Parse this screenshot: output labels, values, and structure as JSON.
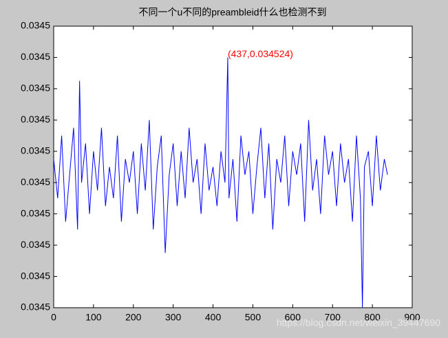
{
  "chart_data": {
    "type": "line",
    "title": "不同一个u不同的preambleid什么也检测不到",
    "x": [
      0,
      10,
      20,
      30,
      40,
      50,
      60,
      65,
      70,
      80,
      90,
      100,
      110,
      120,
      130,
      140,
      150,
      160,
      170,
      180,
      190,
      200,
      210,
      220,
      230,
      240,
      250,
      260,
      270,
      280,
      290,
      300,
      310,
      320,
      330,
      340,
      350,
      360,
      370,
      380,
      390,
      400,
      410,
      420,
      430,
      437,
      440,
      450,
      460,
      470,
      480,
      490,
      500,
      510,
      520,
      530,
      540,
      550,
      560,
      570,
      580,
      590,
      600,
      610,
      620,
      630,
      640,
      650,
      660,
      670,
      680,
      690,
      700,
      710,
      720,
      730,
      740,
      750,
      760,
      770,
      775,
      780,
      790,
      800,
      810,
      820,
      830,
      838
    ],
    "series": [
      {
        "color": "#0000ff",
        "values": [
          0.034511,
          0.034506,
          0.034514,
          0.034503,
          0.034509,
          0.034515,
          0.034502,
          0.034521,
          0.034508,
          0.034513,
          0.034504,
          0.034512,
          0.034507,
          0.034515,
          0.034505,
          0.03451,
          0.034506,
          0.034514,
          0.034503,
          0.034511,
          0.034508,
          0.034512,
          0.034504,
          0.034513,
          0.034507,
          0.034516,
          0.034502,
          0.03451,
          0.034514,
          0.034499,
          0.034509,
          0.034513,
          0.034505,
          0.034512,
          0.034506,
          0.034515,
          0.034508,
          0.034511,
          0.034504,
          0.034513,
          0.034507,
          0.03451,
          0.034505,
          0.034512,
          0.034508,
          0.034524,
          0.034506,
          0.034511,
          0.034503,
          0.034514,
          0.034509,
          0.034512,
          0.034504,
          0.03451,
          0.034515,
          0.034506,
          0.034513,
          0.034502,
          0.034511,
          0.034508,
          0.034514,
          0.034505,
          0.034512,
          0.034509,
          0.034513,
          0.034503,
          0.034516,
          0.034507,
          0.034511,
          0.034504,
          0.034514,
          0.034509,
          0.034512,
          0.034505,
          0.034513,
          0.034508,
          0.034511,
          0.034503,
          0.034514,
          0.034506,
          0.034492,
          0.03451,
          0.034512,
          0.034505,
          0.034514,
          0.034507,
          0.034511,
          0.034509
        ]
      }
    ],
    "xlim": [
      0,
      900
    ],
    "xticks": [
      0,
      100,
      200,
      300,
      400,
      500,
      600,
      700,
      800,
      900
    ],
    "ylim": [
      0.034492,
      0.034528
    ],
    "yticks": [
      {
        "value": 0.034492,
        "label": "0.0345"
      },
      {
        "value": 0.034496,
        "label": "0.0345"
      },
      {
        "value": 0.0345,
        "label": "0.0345"
      },
      {
        "value": 0.034504,
        "label": "0.0345"
      },
      {
        "value": 0.034508,
        "label": "0.0345"
      },
      {
        "value": 0.034512,
        "label": "0.0345"
      },
      {
        "value": 0.034516,
        "label": "0.0345"
      },
      {
        "value": 0.03452,
        "label": "0.0345"
      },
      {
        "value": 0.034524,
        "label": "0.0345"
      },
      {
        "value": 0.034528,
        "label": "0.0345"
      }
    ],
    "annotation": "(437,0.034524)",
    "annotation_color": "#ff0000",
    "watermark": "https://blog.csdn.net/weixin_39447690"
  }
}
